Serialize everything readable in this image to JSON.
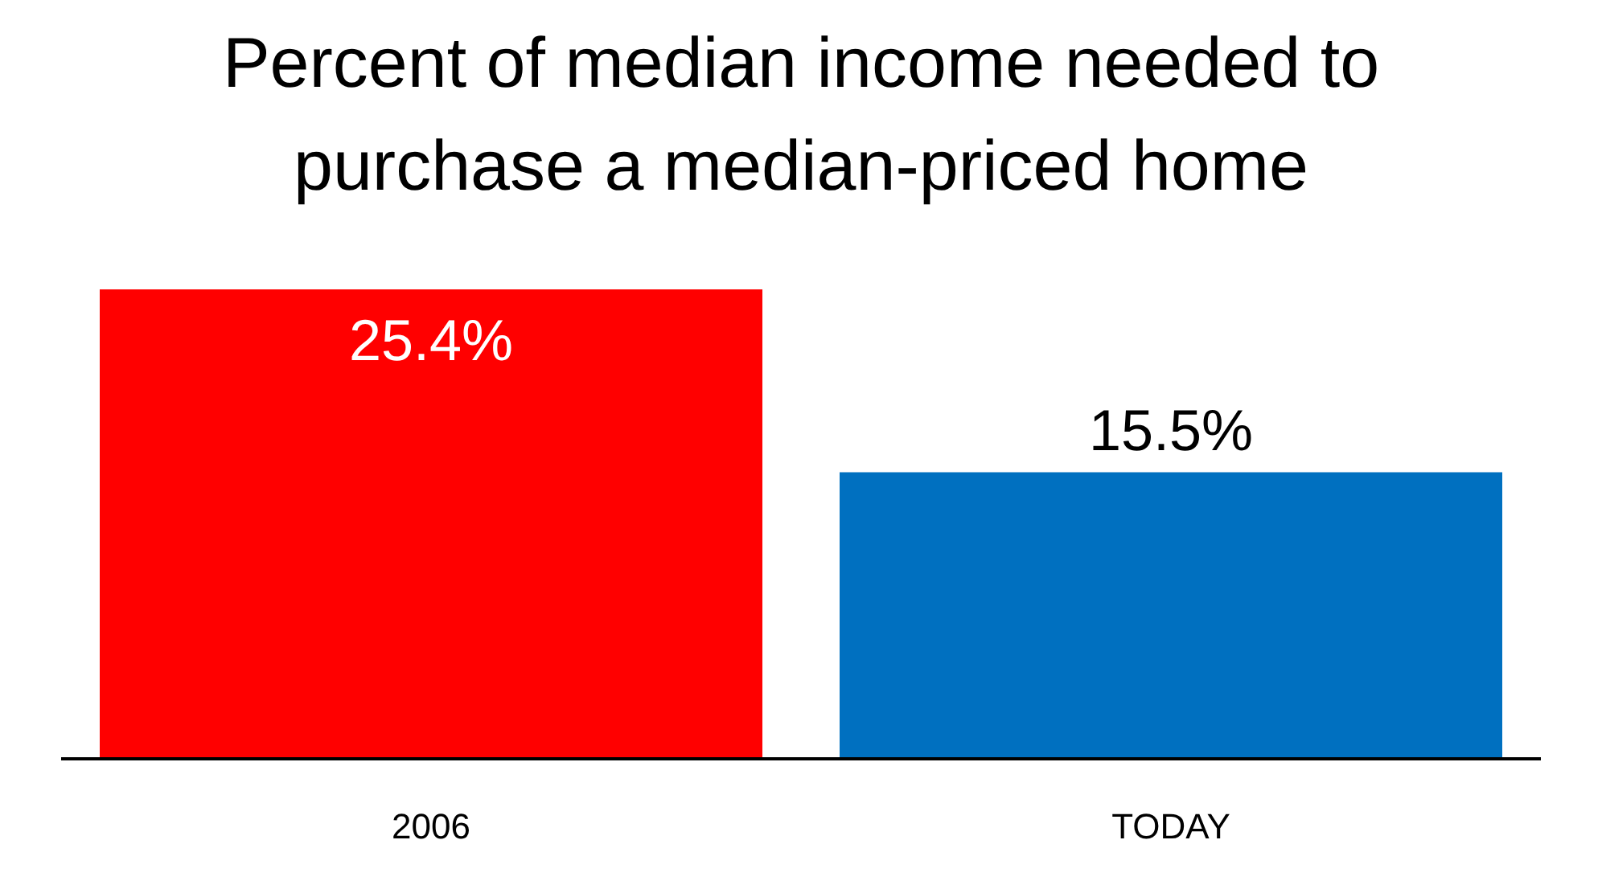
{
  "chart_data": {
    "type": "bar",
    "title": "Percent of median income needed to purchase a median-priced home",
    "categories": [
      "2006",
      "TODAY"
    ],
    "values": [
      25.4,
      15.5
    ],
    "value_labels": [
      "25.4%",
      "15.5%"
    ],
    "colors": [
      "#ff0000",
      "#0070c0"
    ],
    "tick_labels": "x"
  }
}
